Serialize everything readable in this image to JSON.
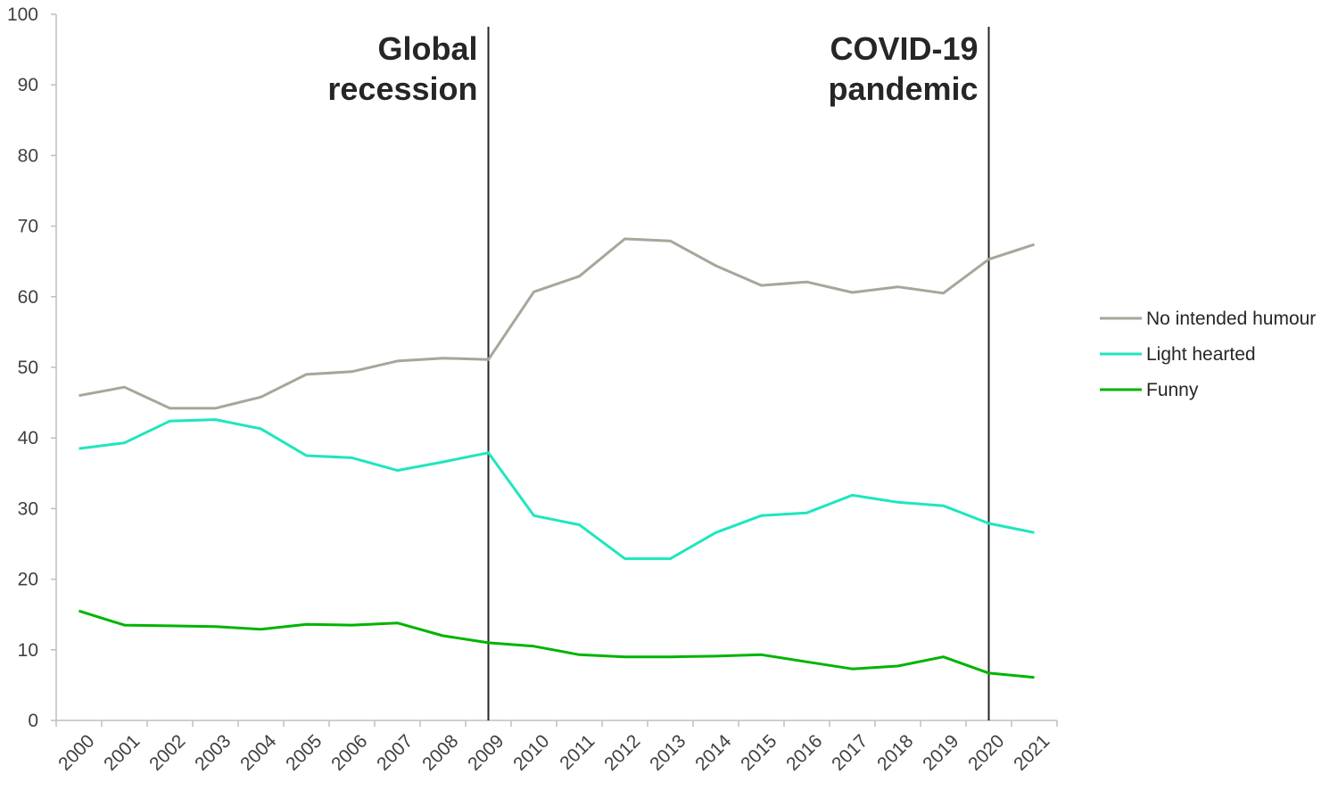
{
  "chart_data": {
    "type": "line",
    "title": "",
    "xlabel": "",
    "ylabel": "",
    "ylim": [
      0,
      100
    ],
    "yticks": [
      0,
      10,
      20,
      30,
      40,
      50,
      60,
      70,
      80,
      90,
      100
    ],
    "grid": false,
    "legend_placement": "right",
    "categories": [
      "2000",
      "2001",
      "2002",
      "2003",
      "2004",
      "2005",
      "2006",
      "2007",
      "2008",
      "2009",
      "2010",
      "2011",
      "2012",
      "2013",
      "2014",
      "2015",
      "2016",
      "2017",
      "2018",
      "2019",
      "2020",
      "2021"
    ],
    "series": [
      {
        "name": "No intended humour",
        "color": "#a6a69a",
        "values": [
          46.0,
          47.2,
          44.2,
          44.2,
          45.8,
          49.0,
          49.4,
          50.9,
          51.3,
          51.1,
          60.7,
          62.9,
          68.2,
          67.9,
          64.4,
          61.6,
          62.1,
          60.6,
          61.4,
          60.5,
          65.3,
          67.4
        ]
      },
      {
        "name": "Light hearted",
        "color": "#1ee6bd",
        "values": [
          38.5,
          39.3,
          42.4,
          42.6,
          41.3,
          37.5,
          37.2,
          35.4,
          36.6,
          37.9,
          29.0,
          27.7,
          22.9,
          22.9,
          26.6,
          29.0,
          29.4,
          31.9,
          30.9,
          30.4,
          27.9,
          26.6
        ]
      },
      {
        "name": "Funny",
        "color": "#00b400",
        "values": [
          15.5,
          13.5,
          13.4,
          13.3,
          12.9,
          13.6,
          13.5,
          13.8,
          12.0,
          11.0,
          10.5,
          9.3,
          9.0,
          9.0,
          9.1,
          9.3,
          8.3,
          7.3,
          7.7,
          9.0,
          6.7,
          6.1
        ]
      }
    ],
    "annotations": [
      {
        "at": "2009",
        "lines": [
          "Global",
          "recession"
        ]
      },
      {
        "at": "2020",
        "lines": [
          "COVID-19",
          "pandemic"
        ]
      }
    ]
  }
}
